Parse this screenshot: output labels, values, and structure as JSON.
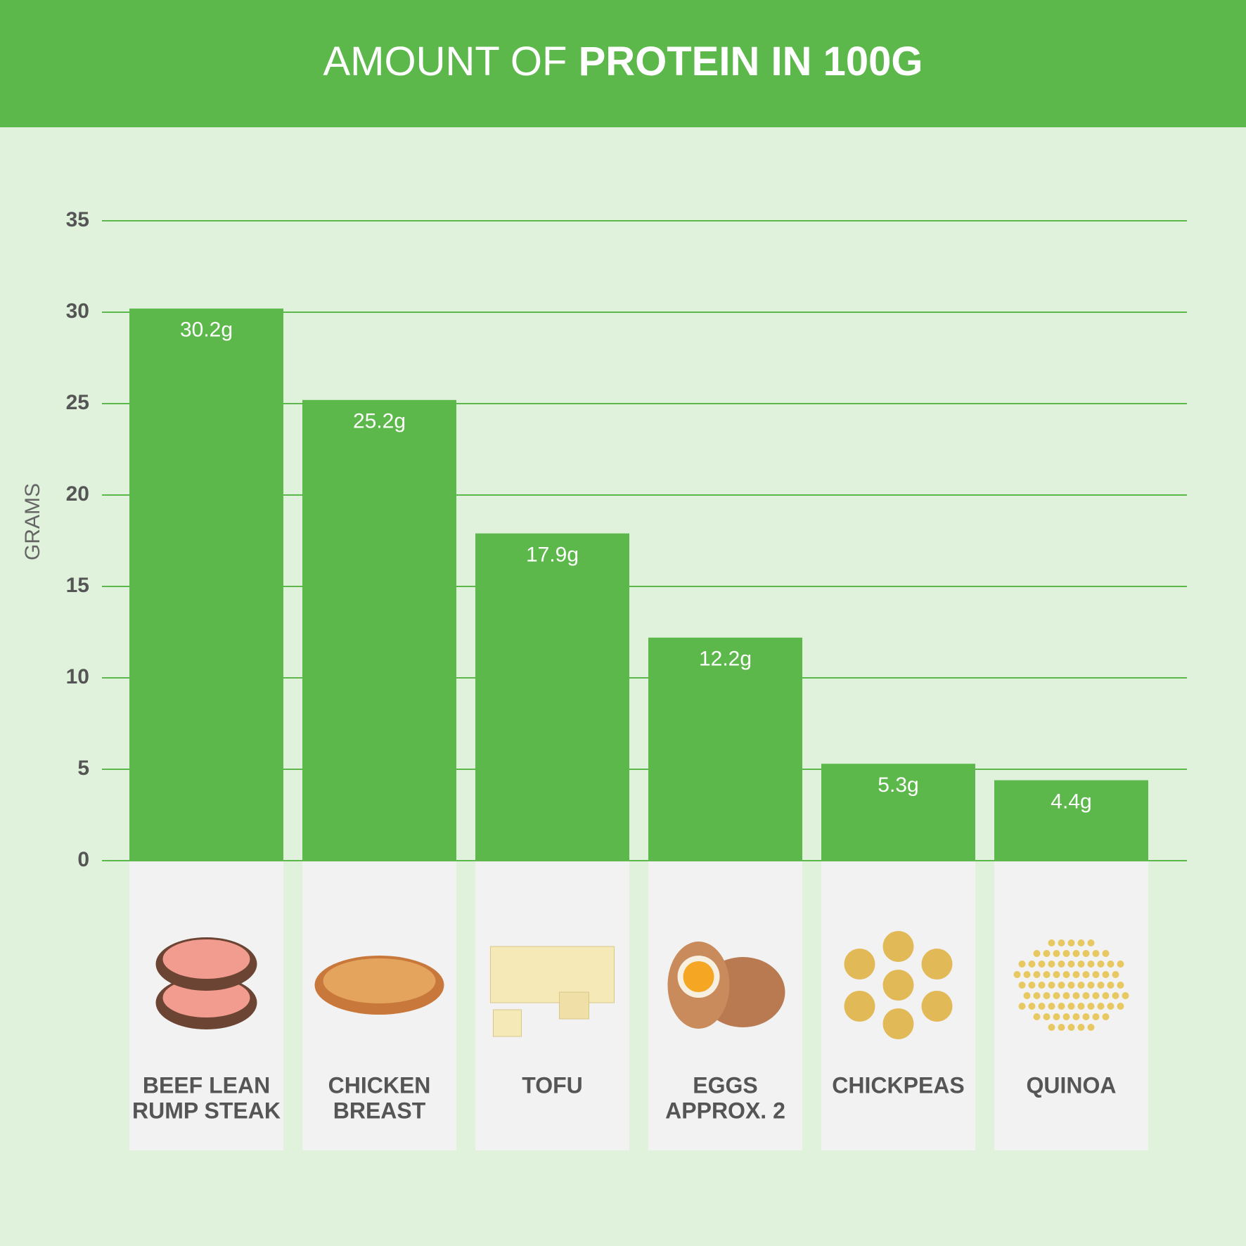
{
  "chart_data": {
    "type": "bar",
    "title": [
      "AMOUNT OF",
      "PROTEIN IN 100G"
    ],
    "ylabel": "GRAMS",
    "categories": [
      [
        "BEEF LEAN",
        "RUMP STEAK"
      ],
      [
        "CHICKEN",
        "BREAST"
      ],
      [
        "TOFU"
      ],
      [
        "EGGS",
        "APPROX. 2"
      ],
      [
        "CHICKPEAS"
      ],
      [
        "QUINOA"
      ]
    ],
    "values": [
      30.2,
      25.2,
      17.9,
      12.2,
      5.3,
      4.4
    ],
    "value_labels": [
      "30.2g",
      "25.2g",
      "17.9g",
      "12.2g",
      "5.3g",
      "4.4g"
    ],
    "color": "#5cb84a",
    "ylim": [
      0,
      35
    ],
    "yticks": [
      0,
      5,
      10,
      15,
      20,
      25,
      30,
      35
    ],
    "grid": true
  }
}
